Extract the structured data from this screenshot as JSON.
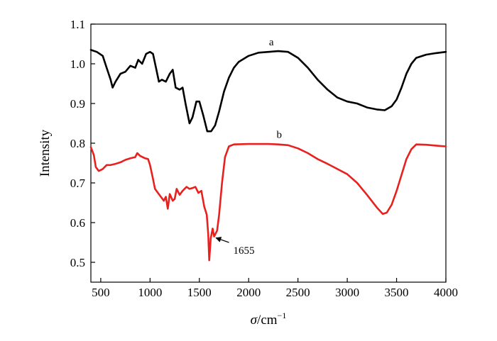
{
  "chart_data": {
    "type": "line",
    "title": "",
    "xlabel_symbol": "σ",
    "xlabel_unit": "/cm",
    "xlabel_exp": "−1",
    "ylabel": "Intensity",
    "xlim": [
      400,
      4000
    ],
    "ylim": [
      0.45,
      1.1
    ],
    "xticks": [
      500,
      1000,
      1500,
      2000,
      2500,
      3000,
      3500,
      4000
    ],
    "yticks": [
      0.5,
      0.6,
      0.7,
      0.8,
      0.9,
      1.0,
      1.1
    ],
    "ytick_labels": [
      "0.5",
      "0.6",
      "0.7",
      "0.8",
      "0.9",
      "1.0",
      "1.1"
    ],
    "grid": false,
    "series": [
      {
        "name": "a",
        "color": "#000000",
        "points": [
          [
            400,
            1.035
          ],
          [
            460,
            1.03
          ],
          [
            520,
            1.02
          ],
          [
            560,
            0.99
          ],
          [
            600,
            0.96
          ],
          [
            620,
            0.94
          ],
          [
            650,
            0.955
          ],
          [
            700,
            0.975
          ],
          [
            750,
            0.98
          ],
          [
            800,
            0.995
          ],
          [
            850,
            0.99
          ],
          [
            880,
            1.01
          ],
          [
            920,
            1.0
          ],
          [
            960,
            1.025
          ],
          [
            1000,
            1.03
          ],
          [
            1030,
            1.025
          ],
          [
            1060,
            0.99
          ],
          [
            1090,
            0.955
          ],
          [
            1120,
            0.96
          ],
          [
            1160,
            0.955
          ],
          [
            1200,
            0.975
          ],
          [
            1230,
            0.985
          ],
          [
            1260,
            0.94
          ],
          [
            1300,
            0.935
          ],
          [
            1330,
            0.94
          ],
          [
            1360,
            0.9
          ],
          [
            1400,
            0.85
          ],
          [
            1430,
            0.865
          ],
          [
            1470,
            0.905
          ],
          [
            1500,
            0.905
          ],
          [
            1540,
            0.87
          ],
          [
            1580,
            0.83
          ],
          [
            1620,
            0.83
          ],
          [
            1660,
            0.845
          ],
          [
            1700,
            0.88
          ],
          [
            1750,
            0.93
          ],
          [
            1800,
            0.965
          ],
          [
            1850,
            0.99
          ],
          [
            1900,
            1.005
          ],
          [
            2000,
            1.02
          ],
          [
            2100,
            1.028
          ],
          [
            2200,
            1.03
          ],
          [
            2300,
            1.032
          ],
          [
            2400,
            1.03
          ],
          [
            2500,
            1.015
          ],
          [
            2600,
            0.99
          ],
          [
            2700,
            0.96
          ],
          [
            2800,
            0.935
          ],
          [
            2900,
            0.915
          ],
          [
            3000,
            0.905
          ],
          [
            3100,
            0.9
          ],
          [
            3200,
            0.89
          ],
          [
            3300,
            0.885
          ],
          [
            3380,
            0.883
          ],
          [
            3450,
            0.893
          ],
          [
            3500,
            0.91
          ],
          [
            3550,
            0.94
          ],
          [
            3600,
            0.975
          ],
          [
            3650,
            1.0
          ],
          [
            3700,
            1.015
          ],
          [
            3800,
            1.023
          ],
          [
            3900,
            1.027
          ],
          [
            4000,
            1.03
          ]
        ]
      },
      {
        "name": "b",
        "color": "#e8201e",
        "points": [
          [
            400,
            0.79
          ],
          [
            430,
            0.77
          ],
          [
            450,
            0.74
          ],
          [
            480,
            0.73
          ],
          [
            520,
            0.735
          ],
          [
            560,
            0.745
          ],
          [
            600,
            0.745
          ],
          [
            650,
            0.748
          ],
          [
            700,
            0.752
          ],
          [
            750,
            0.758
          ],
          [
            800,
            0.762
          ],
          [
            850,
            0.765
          ],
          [
            870,
            0.775
          ],
          [
            900,
            0.768
          ],
          [
            950,
            0.762
          ],
          [
            980,
            0.76
          ],
          [
            1000,
            0.745
          ],
          [
            1030,
            0.71
          ],
          [
            1050,
            0.685
          ],
          [
            1080,
            0.675
          ],
          [
            1110,
            0.665
          ],
          [
            1140,
            0.655
          ],
          [
            1160,
            0.665
          ],
          [
            1180,
            0.635
          ],
          [
            1200,
            0.672
          ],
          [
            1230,
            0.655
          ],
          [
            1250,
            0.66
          ],
          [
            1270,
            0.685
          ],
          [
            1300,
            0.67
          ],
          [
            1330,
            0.68
          ],
          [
            1370,
            0.69
          ],
          [
            1400,
            0.685
          ],
          [
            1430,
            0.687
          ],
          [
            1460,
            0.69
          ],
          [
            1490,
            0.675
          ],
          [
            1520,
            0.68
          ],
          [
            1550,
            0.64
          ],
          [
            1575,
            0.62
          ],
          [
            1590,
            0.57
          ],
          [
            1600,
            0.505
          ],
          [
            1615,
            0.56
          ],
          [
            1635,
            0.585
          ],
          [
            1650,
            0.565
          ],
          [
            1680,
            0.58
          ],
          [
            1700,
            0.62
          ],
          [
            1730,
            0.7
          ],
          [
            1760,
            0.765
          ],
          [
            1800,
            0.792
          ],
          [
            1850,
            0.797
          ],
          [
            2000,
            0.798
          ],
          [
            2200,
            0.798
          ],
          [
            2300,
            0.797
          ],
          [
            2400,
            0.795
          ],
          [
            2500,
            0.787
          ],
          [
            2600,
            0.775
          ],
          [
            2700,
            0.76
          ],
          [
            2800,
            0.748
          ],
          [
            2900,
            0.735
          ],
          [
            3000,
            0.722
          ],
          [
            3100,
            0.7
          ],
          [
            3200,
            0.67
          ],
          [
            3300,
            0.638
          ],
          [
            3360,
            0.622
          ],
          [
            3400,
            0.625
          ],
          [
            3450,
            0.645
          ],
          [
            3500,
            0.68
          ],
          [
            3550,
            0.72
          ],
          [
            3600,
            0.76
          ],
          [
            3650,
            0.785
          ],
          [
            3700,
            0.797
          ],
          [
            3800,
            0.796
          ],
          [
            3900,
            0.794
          ],
          [
            4000,
            0.792
          ]
        ]
      }
    ],
    "annotations": [
      {
        "text": "a",
        "series": "a",
        "at": [
          2230,
          1.032
        ]
      },
      {
        "text": "b",
        "series": "b",
        "at": [
          2310,
          0.799
        ]
      },
      {
        "text": "1655",
        "arrow_to": [
          1655,
          0.565
        ],
        "at": [
          1930,
          0.525
        ]
      }
    ]
  }
}
